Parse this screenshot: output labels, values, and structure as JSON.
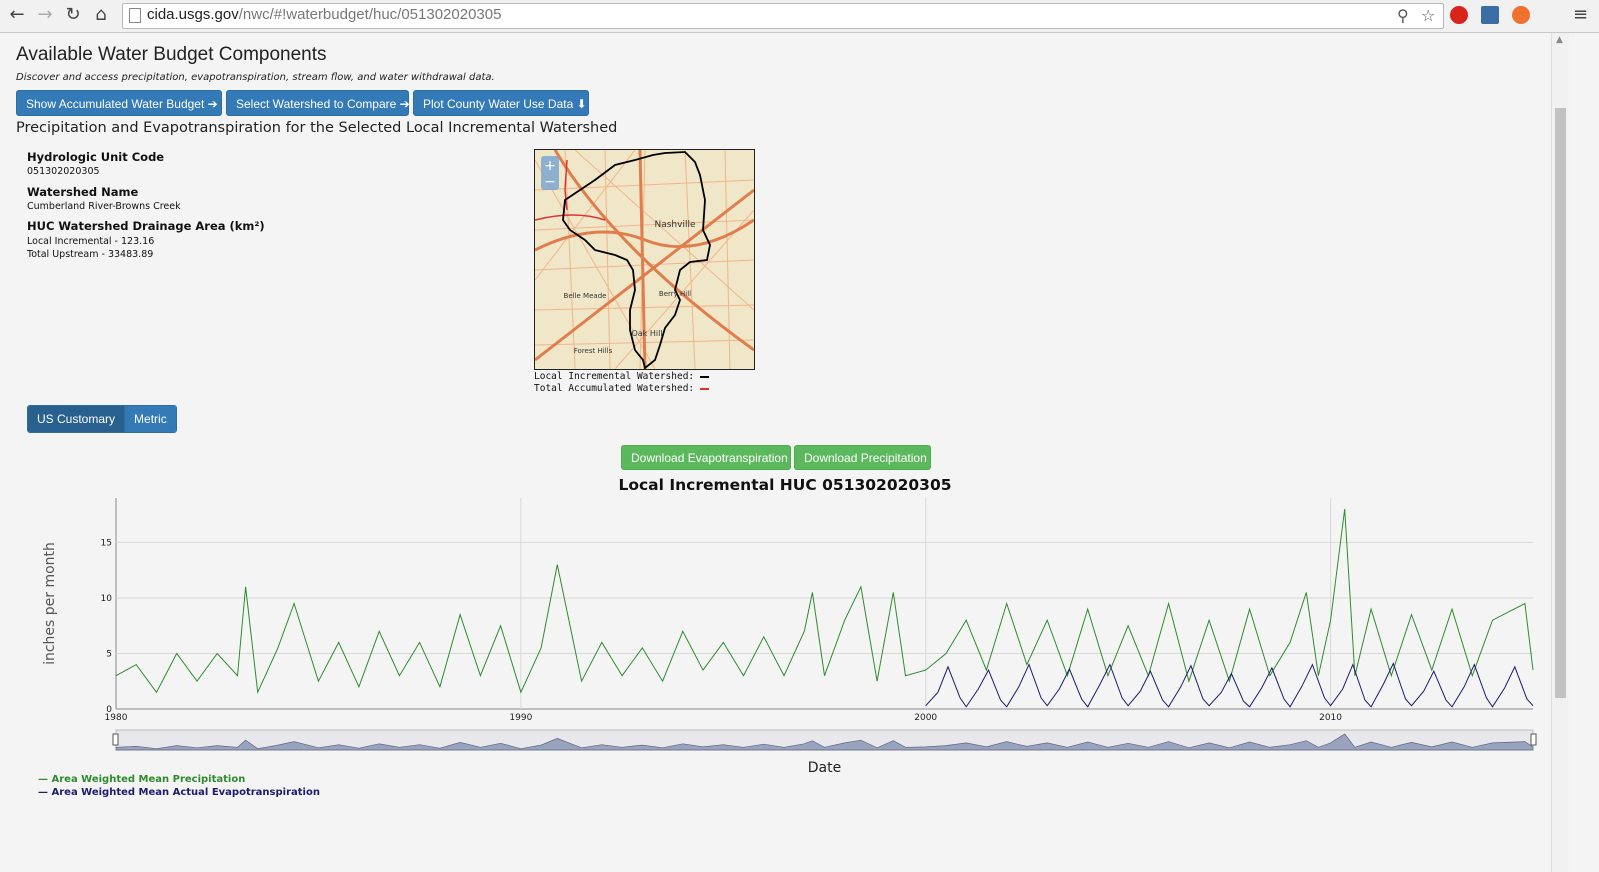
{
  "browser": {
    "url_host": "cida.usgs.gov",
    "url_path": "/nwc/#!waterbudget/huc/051302020305"
  },
  "page": {
    "title": "Available Water Budget Components",
    "subtitle": "Discover and access precipitation, evapotranspiration, stream flow, and water withdrawal data.",
    "buttons": {
      "accumulated": "Show Accumulated Water Budget ➔",
      "compare": "Select Watershed to Compare ➔",
      "county": "Plot County Water Use Data ⬇"
    },
    "section_title": "Precipitation and Evapotranspiration for the Selected Local Incremental Watershed"
  },
  "info": {
    "huc_label": "Hydrologic Unit Code",
    "huc_value": "051302020305",
    "name_label": "Watershed Name",
    "name_value": "Cumberland River-Browns Creek",
    "area_label": "HUC Watershed Drainage Area (km²)",
    "local_incremental": "Local Incremental - 123.16",
    "total_upstream": "Total Upstream - 33483.89"
  },
  "map": {
    "labels": [
      "Nashville",
      "Belle Meade",
      "Berry Hill",
      "Oak Hill",
      "Forest Hills"
    ],
    "zoom_in": "+",
    "zoom_out": "−",
    "legend_local": "Local Incremental Watershed:",
    "legend_total": "Total Accumulated Watershed:"
  },
  "units": {
    "us": "US Customary",
    "metric": "Metric"
  },
  "downloads": {
    "et": "Download Evapotranspiration",
    "precip": "Download Precipitation"
  },
  "colors": {
    "precip": "#2e8b2e",
    "et": "#1c1c6b",
    "primary": "#337ab7",
    "success": "#5cb85c"
  },
  "chart_data": {
    "type": "line",
    "title": "Local Incremental HUC 051302020305",
    "xlabel": "Date",
    "ylabel": "inches per month",
    "xlim": [
      1980,
      2015
    ],
    "ylim": [
      0,
      19
    ],
    "x_ticks": [
      "1980",
      "1990",
      "2000",
      "2010"
    ],
    "y_ticks": [
      "0",
      "5",
      "10",
      "15"
    ],
    "grid": true,
    "legend_position": "bottom-left",
    "series": [
      {
        "name": "Area Weighted Mean Precipitation",
        "x": [
          1980.0,
          1980.5,
          1981.0,
          1981.5,
          1982.0,
          1982.5,
          1983.0,
          1983.2,
          1983.5,
          1984.0,
          1984.4,
          1985.0,
          1985.5,
          1986.0,
          1986.5,
          1987.0,
          1987.5,
          1988.0,
          1988.5,
          1989.0,
          1989.5,
          1990.0,
          1990.5,
          1990.9,
          1991.5,
          1992.0,
          1992.5,
          1993.0,
          1993.5,
          1994.0,
          1994.5,
          1995.0,
          1995.5,
          1996.0,
          1996.5,
          1997.0,
          1997.2,
          1997.5,
          1998.0,
          1998.4,
          1998.8,
          1999.2,
          1999.5,
          2000.0,
          2000.5,
          2001.0,
          2001.5,
          2002.0,
          2002.5,
          2003.0,
          2003.5,
          2004.0,
          2004.5,
          2005.0,
          2005.5,
          2006.0,
          2006.5,
          2007.0,
          2007.5,
          2008.0,
          2008.5,
          2009.0,
          2009.4,
          2009.7,
          2010.0,
          2010.35,
          2010.6,
          2011.0,
          2011.5,
          2012.0,
          2012.5,
          2013.0,
          2013.5,
          2014.0,
          2014.8,
          2015.0
        ],
        "y": [
          3.0,
          4.0,
          1.5,
          5.0,
          2.5,
          5.0,
          3.0,
          11.0,
          1.5,
          5.5,
          9.5,
          2.5,
          6.0,
          2.0,
          7.0,
          3.0,
          6.0,
          2.0,
          8.5,
          3.0,
          7.5,
          1.5,
          5.5,
          13.0,
          2.5,
          6.0,
          3.0,
          5.5,
          2.5,
          7.0,
          3.5,
          6.0,
          3.0,
          6.5,
          3.0,
          7.0,
          10.5,
          3.0,
          8.0,
          11.0,
          2.5,
          10.5,
          3.0,
          3.5,
          5.0,
          8.0,
          3.5,
          9.5,
          4.0,
          8.0,
          3.0,
          9.0,
          3.0,
          7.5,
          3.0,
          9.5,
          2.5,
          8.0,
          2.5,
          9.0,
          3.0,
          6.0,
          10.5,
          3.0,
          8.0,
          18.0,
          3.0,
          9.0,
          3.0,
          8.5,
          3.5,
          9.0,
          3.0,
          8.0,
          9.5,
          3.5
        ]
      },
      {
        "name": "Area Weighted Mean Actual Evapotranspiration",
        "x": [
          2000.0,
          2000.3,
          2000.55,
          2000.85,
          2001.0,
          2001.3,
          2001.55,
          2001.85,
          2002.0,
          2002.3,
          2002.55,
          2002.85,
          2003.0,
          2003.3,
          2003.55,
          2003.85,
          2004.0,
          2004.3,
          2004.55,
          2004.85,
          2005.0,
          2005.3,
          2005.55,
          2005.85,
          2006.0,
          2006.3,
          2006.55,
          2006.85,
          2007.0,
          2007.3,
          2007.55,
          2007.85,
          2008.0,
          2008.3,
          2008.55,
          2008.85,
          2009.0,
          2009.3,
          2009.55,
          2009.85,
          2010.0,
          2010.3,
          2010.55,
          2010.85,
          2011.0,
          2011.3,
          2011.55,
          2011.85,
          2012.0,
          2012.3,
          2012.55,
          2012.85,
          2013.0,
          2013.3,
          2013.55,
          2013.85,
          2014.0,
          2014.3,
          2014.55,
          2014.85,
          2015.0
        ],
        "y": [
          0.3,
          1.5,
          3.8,
          1.0,
          0.2,
          1.8,
          3.5,
          0.8,
          0.2,
          2.0,
          4.0,
          1.0,
          0.3,
          1.8,
          3.6,
          0.9,
          0.2,
          2.2,
          4.0,
          1.0,
          0.3,
          1.6,
          3.4,
          0.8,
          0.2,
          2.0,
          3.9,
          0.9,
          0.3,
          1.5,
          3.2,
          0.7,
          0.2,
          1.9,
          3.7,
          0.9,
          0.2,
          2.1,
          4.0,
          1.0,
          0.3,
          1.8,
          4.0,
          0.8,
          0.2,
          2.2,
          4.1,
          0.9,
          0.3,
          1.6,
          3.4,
          0.8,
          0.2,
          2.0,
          4.0,
          1.0,
          0.2,
          1.9,
          3.8,
          0.9,
          0.3
        ]
      }
    ]
  }
}
